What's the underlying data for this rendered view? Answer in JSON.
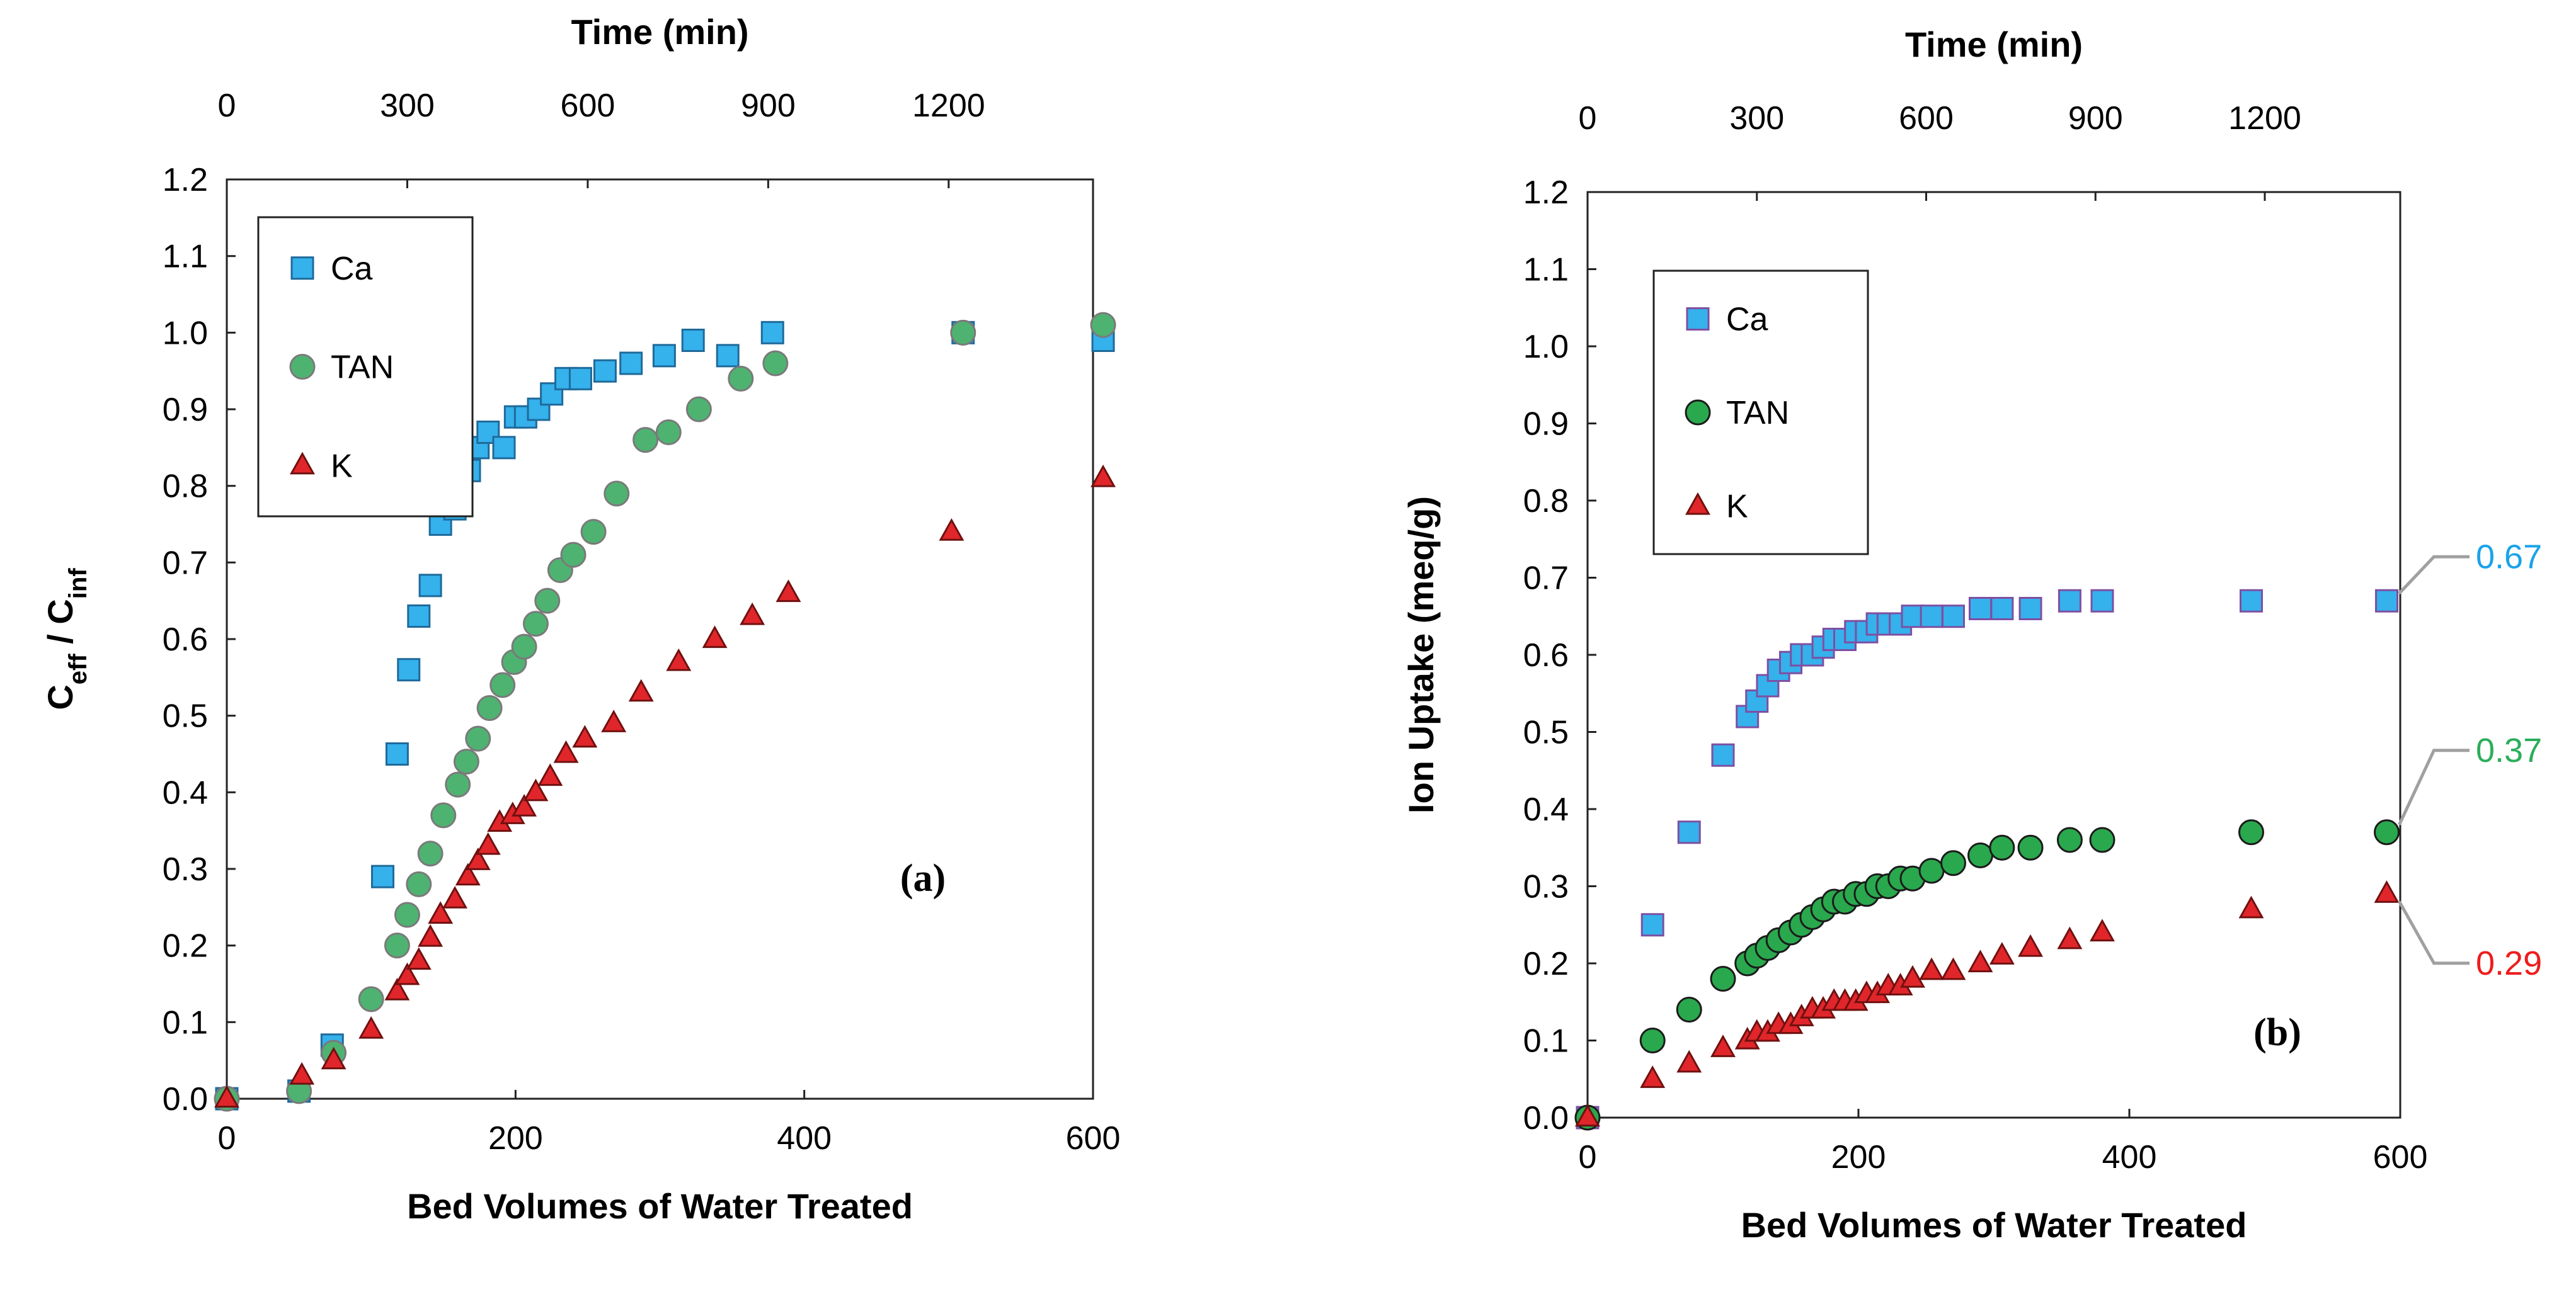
{
  "chart_data": [
    {
      "panel": "(a)",
      "type": "scatter",
      "xlabel": "Bed Volumes of Water Treated",
      "x2label": "Time (min)",
      "ylabel_main": "C",
      "ylabel_sub1": "eff",
      "ylabel_mid": " / C",
      "ylabel_sub2": "inf",
      "xlim": [
        0,
        600
      ],
      "ylim": [
        0,
        1.2
      ],
      "xticks": [
        "0",
        "200",
        "400",
        "600"
      ],
      "yticks": [
        "0.0",
        "0.1",
        "0.2",
        "0.3",
        "0.4",
        "0.5",
        "0.6",
        "0.7",
        "0.8",
        "0.9",
        "1.0",
        "1.1",
        "1.2"
      ],
      "x2ticks": [
        "0",
        "300",
        "600",
        "900",
        "1200"
      ],
      "x2tick_values": [
        0,
        125,
        250,
        375,
        500
      ],
      "legend": [
        "Ca",
        "TAN",
        "K"
      ],
      "series": [
        {
          "name": "Ca",
          "marker": "square",
          "x": [
            0,
            50,
            73,
            108,
            118,
            126,
            133,
            141,
            148,
            158,
            168,
            174,
            181,
            192,
            200,
            207,
            216,
            225,
            235,
            245,
            262,
            280,
            303,
            323,
            347,
            378,
            510,
            607
          ],
          "y": [
            0,
            0.01,
            0.07,
            0.29,
            0.45,
            0.56,
            0.63,
            0.67,
            0.75,
            0.77,
            0.82,
            0.85,
            0.87,
            0.85,
            0.89,
            0.89,
            0.9,
            0.92,
            0.94,
            0.94,
            0.95,
            0.96,
            0.97,
            0.99,
            0.97,
            1.0,
            1.0,
            0.99
          ]
        },
        {
          "name": "TAN",
          "marker": "circle",
          "x": [
            0,
            50,
            74,
            100,
            118,
            125,
            133,
            141,
            150,
            160,
            166,
            174,
            182,
            191,
            199,
            206,
            214,
            222,
            231,
            240,
            254,
            270,
            290,
            306,
            327,
            356,
            380,
            510,
            607
          ],
          "y": [
            0,
            0.01,
            0.06,
            0.13,
            0.2,
            0.24,
            0.28,
            0.32,
            0.37,
            0.41,
            0.44,
            0.47,
            0.51,
            0.54,
            0.57,
            0.59,
            0.62,
            0.65,
            0.69,
            0.71,
            0.74,
            0.79,
            0.86,
            0.87,
            0.9,
            0.94,
            0.96,
            1.0,
            1.01
          ]
        },
        {
          "name": "K",
          "marker": "triangle",
          "x": [
            0,
            52,
            74,
            100,
            118,
            125,
            133,
            141,
            148,
            158,
            167,
            174,
            181,
            189,
            198,
            206,
            214,
            224,
            235,
            248,
            268,
            287,
            313,
            338,
            364,
            389,
            502,
            607
          ],
          "y": [
            0,
            0.03,
            0.05,
            0.09,
            0.14,
            0.16,
            0.18,
            0.21,
            0.24,
            0.26,
            0.29,
            0.31,
            0.33,
            0.36,
            0.37,
            0.38,
            0.4,
            0.42,
            0.45,
            0.47,
            0.49,
            0.53,
            0.57,
            0.6,
            0.63,
            0.66,
            0.74,
            0.81
          ]
        }
      ]
    },
    {
      "panel": "(b)",
      "type": "scatter",
      "xlabel": "Bed Volumes of Water Treated",
      "x2label": "Time (min)",
      "ylabel": "Ion Uptake (meq/g)",
      "xlim": [
        0,
        600
      ],
      "ylim": [
        0,
        1.2
      ],
      "xticks": [
        "0",
        "200",
        "400",
        "600"
      ],
      "yticks": [
        "0.0",
        "0.1",
        "0.2",
        "0.3",
        "0.4",
        "0.5",
        "0.6",
        "0.7",
        "0.8",
        "0.9",
        "1.0",
        "1.1",
        "1.2"
      ],
      "x2ticks": [
        "0",
        "300",
        "600",
        "900",
        "1200"
      ],
      "x2tick_values": [
        0,
        125,
        250,
        375,
        500
      ],
      "legend": [
        "Ca",
        "TAN",
        "K"
      ],
      "series": [
        {
          "name": "Ca",
          "marker": "square",
          "x": [
            0,
            48,
            75,
            100,
            118,
            125,
            133,
            141,
            150,
            158,
            166,
            174,
            182,
            190,
            198,
            206,
            214,
            222,
            231,
            240,
            254,
            270,
            290,
            306,
            327,
            356,
            380,
            490,
            590
          ],
          "y": [
            0,
            0.25,
            0.37,
            0.47,
            0.52,
            0.54,
            0.56,
            0.58,
            0.59,
            0.6,
            0.6,
            0.61,
            0.62,
            0.62,
            0.63,
            0.63,
            0.64,
            0.64,
            0.64,
            0.65,
            0.65,
            0.65,
            0.66,
            0.66,
            0.66,
            0.67,
            0.67,
            0.67,
            0.67
          ]
        },
        {
          "name": "TAN",
          "marker": "circle",
          "x": [
            0,
            48,
            75,
            100,
            118,
            125,
            133,
            141,
            150,
            158,
            166,
            174,
            182,
            190,
            198,
            206,
            214,
            222,
            231,
            240,
            254,
            270,
            290,
            306,
            327,
            356,
            380,
            490,
            590
          ],
          "y": [
            0,
            0.1,
            0.14,
            0.18,
            0.2,
            0.21,
            0.22,
            0.23,
            0.24,
            0.25,
            0.26,
            0.27,
            0.28,
            0.28,
            0.29,
            0.29,
            0.3,
            0.3,
            0.31,
            0.31,
            0.32,
            0.33,
            0.34,
            0.35,
            0.35,
            0.36,
            0.36,
            0.37,
            0.37
          ]
        },
        {
          "name": "K",
          "marker": "triangle",
          "x": [
            0,
            48,
            75,
            100,
            118,
            125,
            133,
            141,
            150,
            158,
            166,
            174,
            182,
            190,
            198,
            206,
            214,
            222,
            231,
            240,
            254,
            270,
            290,
            306,
            327,
            356,
            380,
            490,
            590
          ],
          "y": [
            0,
            0.05,
            0.07,
            0.09,
            0.1,
            0.11,
            0.11,
            0.12,
            0.12,
            0.13,
            0.14,
            0.14,
            0.15,
            0.15,
            0.15,
            0.16,
            0.16,
            0.17,
            0.17,
            0.18,
            0.19,
            0.19,
            0.2,
            0.21,
            0.22,
            0.23,
            0.24,
            0.27,
            0.29
          ]
        }
      ],
      "callouts": [
        {
          "series": "Ca",
          "text": "0.67",
          "color": "#1aa3e8"
        },
        {
          "series": "TAN",
          "text": "0.37",
          "color": "#2aae5a"
        },
        {
          "series": "K",
          "text": "0.29",
          "color": "#ee1c1c"
        }
      ]
    }
  ],
  "colors": {
    "ca_fill": "#35b1ec",
    "ca_stroke_a": "#1f6a9a",
    "ca_stroke_b": "#7e4fa2",
    "tan_fill_a": "#4eb371",
    "tan_stroke_a": "#7a7a7a",
    "tan_fill_b": "#2aa84d",
    "tan_stroke_b": "#1b1b1b",
    "k_fill": "#e0262a",
    "k_stroke": "#701010",
    "callout_line": "#a0a0a0"
  }
}
